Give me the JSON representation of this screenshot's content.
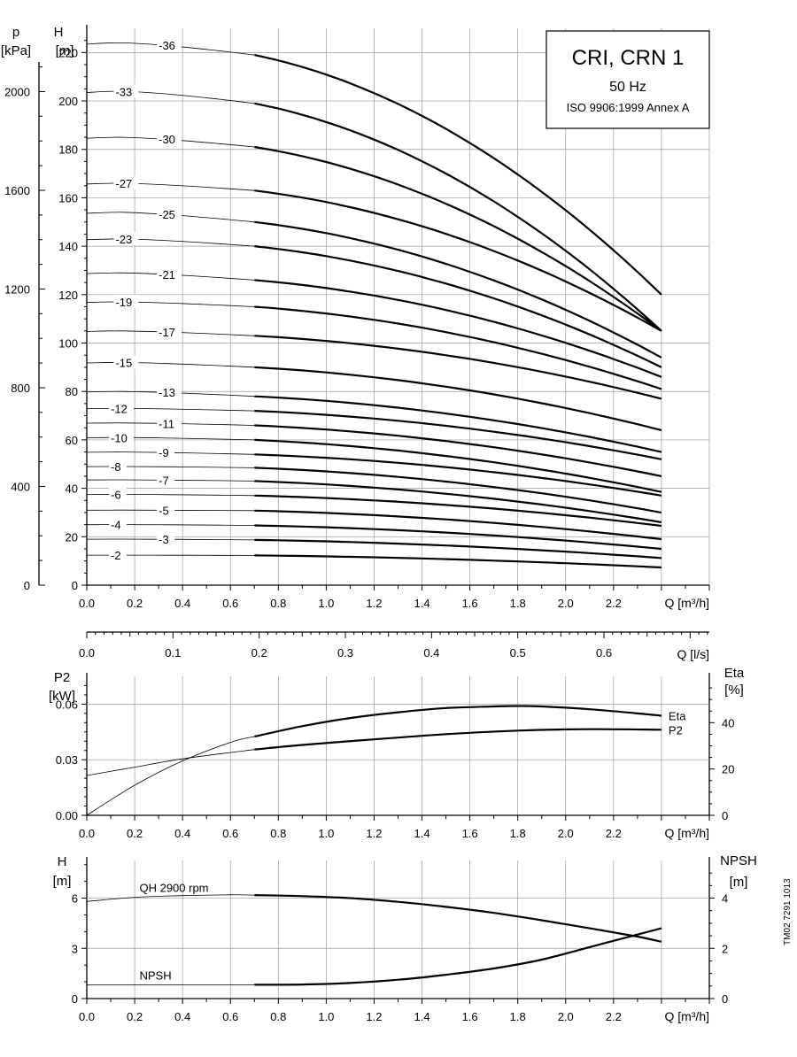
{
  "chart_data": [
    {
      "panel": "head",
      "type": "line",
      "title": "CRI, CRN 1",
      "subtitle": "50 Hz",
      "note": "ISO 9906:1999 Annex A",
      "y_left_label": [
        "H",
        "[m]"
      ],
      "y_left2_label": [
        "p",
        "[kPa]"
      ],
      "x_label": "Q [m³/h]",
      "x2_label": "Q [l/s]",
      "xlim": [
        0,
        2.6
      ],
      "ylim": [
        0,
        230
      ],
      "x_ticks": [
        "0.0",
        "0.2",
        "0.4",
        "0.6",
        "0.8",
        "1.0",
        "1.2",
        "1.4",
        "1.6",
        "1.8",
        "2.0",
        "2.2"
      ],
      "y_ticks": [
        "0",
        "20",
        "40",
        "60",
        "80",
        "100",
        "120",
        "140",
        "160",
        "180",
        "200",
        "220"
      ],
      "p_ticks": [
        "0",
        "400",
        "800",
        "1200",
        "1600",
        "2000"
      ],
      "x2_ticks": [
        "0.0",
        "0.1",
        "0.2",
        "0.3",
        "0.4",
        "0.5",
        "0.6"
      ],
      "series": [
        {
          "name": "-2",
          "shutoff": 12.4,
          "at_0_7": 12.3,
          "at_2_4": 7.3
        },
        {
          "name": "-3",
          "shutoff": 19.0,
          "at_0_7": 18.7,
          "at_2_4": 11.2
        },
        {
          "name": "-4",
          "shutoff": 25.0,
          "at_0_7": 24.7,
          "at_2_4": 15.0
        },
        {
          "name": "-5",
          "shutoff": 31.0,
          "at_0_7": 30.8,
          "at_2_4": 19.0
        },
        {
          "name": "-6",
          "shutoff": 37.5,
          "at_0_7": 37.0,
          "at_2_4": 24.5
        },
        {
          "name": "-7",
          "shutoff": 43.5,
          "at_0_7": 43.0,
          "at_2_4": 26.0
        },
        {
          "name": "-8",
          "shutoff": 49.0,
          "at_0_7": 48.5,
          "at_2_4": 30.0
        },
        {
          "name": "-9",
          "shutoff": 55.0,
          "at_0_7": 54.0,
          "at_2_4": 37.0
        },
        {
          "name": "-10",
          "shutoff": 61.0,
          "at_0_7": 60.0,
          "at_2_4": 38.5
        },
        {
          "name": "-11",
          "shutoff": 67.0,
          "at_0_7": 66.0,
          "at_2_4": 45.0
        },
        {
          "name": "-12",
          "shutoff": 73.0,
          "at_0_7": 72.0,
          "at_2_4": 52.0
        },
        {
          "name": "-13",
          "shutoff": 80.0,
          "at_0_7": 78.0,
          "at_2_4": 55.0
        },
        {
          "name": "-15",
          "shutoff": 92.0,
          "at_0_7": 90.0,
          "at_2_4": 64.0
        },
        {
          "name": "-17",
          "shutoff": 105.0,
          "at_0_7": 103.0,
          "at_2_4": 77.0
        },
        {
          "name": "-19",
          "shutoff": 117.0,
          "at_0_7": 115.0,
          "at_2_4": 81.0
        },
        {
          "name": "-21",
          "shutoff": 129.0,
          "at_0_7": 126.0,
          "at_2_4": 86.0
        },
        {
          "name": "-23",
          "shutoff": 143.0,
          "at_0_7": 140.0,
          "at_2_4": 90.0
        },
        {
          "name": "-25",
          "shutoff": 154.0,
          "at_0_7": 150.0,
          "at_2_4": 94.0
        },
        {
          "name": "-27",
          "shutoff": 166.0,
          "at_0_7": 163.0,
          "at_2_4": 105.0
        },
        {
          "name": "-30",
          "shutoff": 185.0,
          "at_0_7": 181.0,
          "at_2_4": 105.0
        },
        {
          "name": "-33",
          "shutoff": 204.0,
          "at_0_7": 199.0,
          "at_2_4": 105.0
        },
        {
          "name": "-36",
          "shutoff": 224.0,
          "at_0_7": 219.0,
          "at_2_4": 120.0
        }
      ],
      "curve_end_q": 2.4,
      "bold_from_q": 0.7
    },
    {
      "panel": "power",
      "type": "line",
      "y_left_label": [
        "P2",
        "[kW]"
      ],
      "y_right_label": [
        "Eta",
        "[%]"
      ],
      "x_label": "Q [m³/h]",
      "xlim": [
        0,
        2.6
      ],
      "ylim": [
        0,
        0.075
      ],
      "y2lim": [
        0,
        60
      ],
      "x_ticks": [
        "0.0",
        "0.2",
        "0.4",
        "0.6",
        "0.8",
        "1.0",
        "1.2",
        "1.4",
        "1.6",
        "1.8",
        "2.0",
        "2.2"
      ],
      "y_ticks": [
        "0.00",
        "0.03",
        "0.06"
      ],
      "y2_ticks": [
        "0",
        "20",
        "40"
      ],
      "series": [
        {
          "name": "Eta",
          "axis": "right",
          "x": [
            0.0,
            0.2,
            0.4,
            0.6,
            0.7,
            0.9,
            1.1,
            1.3,
            1.5,
            1.7,
            1.8,
            1.9,
            2.1,
            2.3,
            2.4
          ],
          "y": [
            0,
            13,
            23.5,
            31.5,
            34,
            38.5,
            42,
            44.5,
            46.3,
            47,
            47.2,
            47,
            45.8,
            44,
            43
          ]
        },
        {
          "name": "P2",
          "axis": "left",
          "x": [
            0.0,
            0.2,
            0.4,
            0.7,
            0.9,
            1.2,
            1.5,
            1.8,
            2.1,
            2.4
          ],
          "y": [
            0.0215,
            0.026,
            0.0305,
            0.0355,
            0.038,
            0.041,
            0.0438,
            0.0457,
            0.0465,
            0.0462
          ]
        }
      ],
      "bold_from_q": 0.7
    },
    {
      "panel": "npsh",
      "type": "line",
      "y_left_label": [
        "H",
        "[m]"
      ],
      "y_right_label": [
        "NPSH",
        "[m]"
      ],
      "x_label": "Q [m³/h]",
      "xlim": [
        0,
        2.6
      ],
      "ylim": [
        0,
        8.25
      ],
      "y2lim": [
        0,
        5.5
      ],
      "x_ticks": [
        "0.0",
        "0.2",
        "0.4",
        "0.6",
        "0.8",
        "1.0",
        "1.2",
        "1.4",
        "1.6",
        "1.8",
        "2.0",
        "2.2"
      ],
      "y_ticks": [
        "0",
        "3",
        "6"
      ],
      "y2_ticks": [
        "0",
        "2",
        "4"
      ],
      "series": [
        {
          "name": "QH 2900 rpm",
          "axis": "left",
          "x": [
            0.0,
            0.2,
            0.4,
            0.6,
            0.7,
            0.9,
            1.1,
            1.3,
            1.5,
            1.7,
            1.9,
            2.1,
            2.3,
            2.4
          ],
          "y": [
            5.8,
            6.05,
            6.15,
            6.2,
            6.18,
            6.12,
            6.0,
            5.78,
            5.48,
            5.12,
            4.68,
            4.2,
            3.7,
            3.4
          ]
        },
        {
          "name": "NPSH",
          "axis": "right",
          "x": [
            0.0,
            0.3,
            0.7,
            0.9,
            1.1,
            1.3,
            1.5,
            1.7,
            1.9,
            2.1,
            2.3,
            2.4
          ],
          "y": [
            0.55,
            0.55,
            0.55,
            0.56,
            0.62,
            0.75,
            0.95,
            1.2,
            1.55,
            2.05,
            2.55,
            2.8
          ]
        }
      ],
      "bold_from_q": 0.7
    }
  ],
  "side_note": "TM02 7291 1013"
}
